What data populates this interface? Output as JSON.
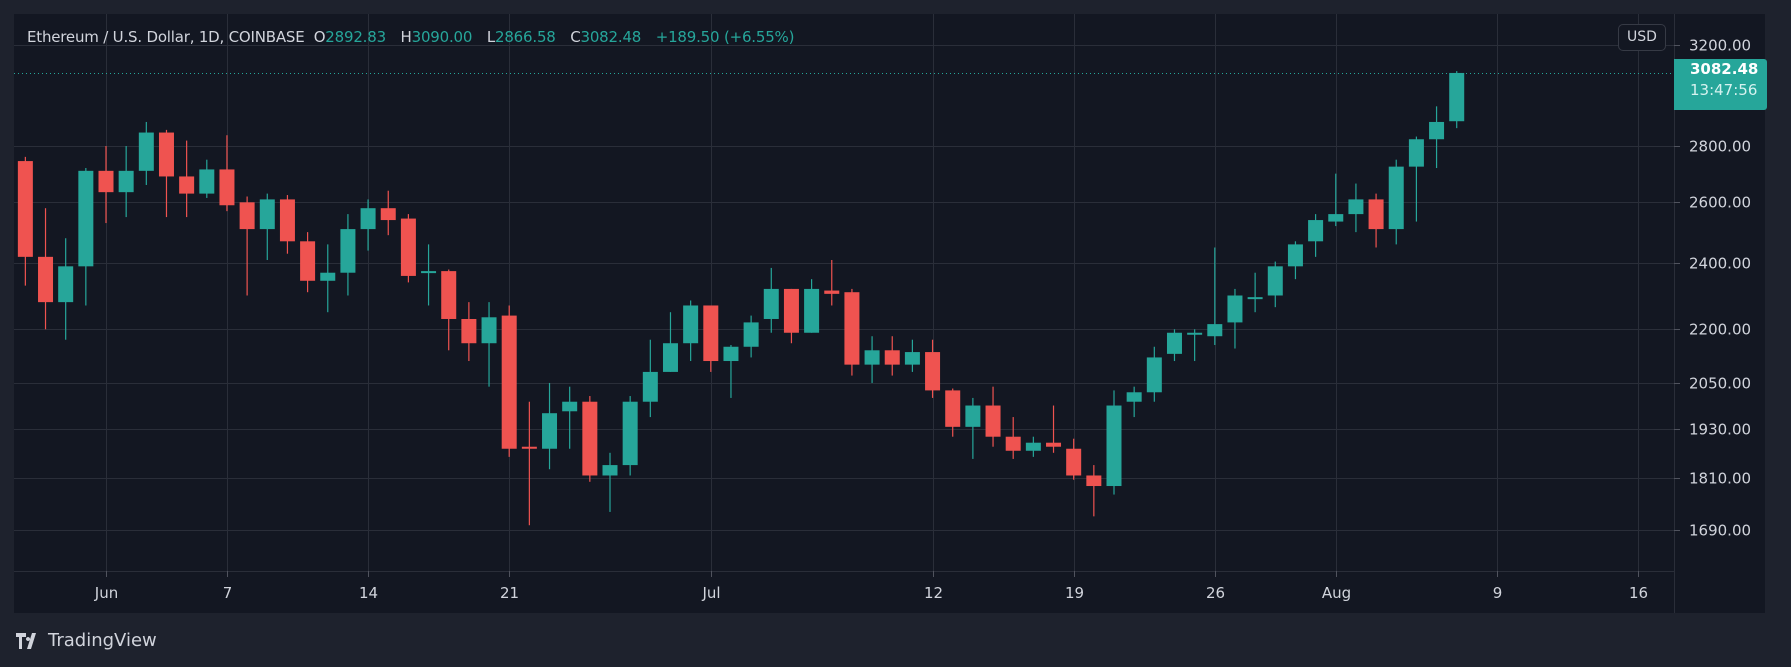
{
  "header": {
    "symbol": "Ethereum / U.S. Dollar, 1D, COINBASE",
    "o_label": "O",
    "o": "2892.83",
    "h_label": "H",
    "h": "3090.00",
    "l_label": "L",
    "l": "2866.58",
    "c_label": "C",
    "c": "3082.48",
    "change": "+189.50 (+6.55%)"
  },
  "currency_button": "USD",
  "last_price": {
    "price": "3082.48",
    "countdown": "13:47:56"
  },
  "branding": "TradingView",
  "colors": {
    "up": "#26a69a",
    "down": "#ef5350",
    "background": "#131722",
    "grid": "#2a2e39"
  },
  "chart_data": {
    "type": "candlestick",
    "title": "Ethereum / U.S. Dollar, 1D, COINBASE",
    "y_scale": "log",
    "ylim": [
      1620,
      3330
    ],
    "grid": true,
    "y_ticks": [
      "3200.00",
      "2800.00",
      "2600.00",
      "2400.00",
      "2200.00",
      "2050.00",
      "1930.00",
      "1810.00",
      "1690.00"
    ],
    "x_ticks": [
      {
        "label": "Jun",
        "date": "Jun 1"
      },
      {
        "label": "7",
        "date": "Jun 7"
      },
      {
        "label": "14",
        "date": "Jun 14"
      },
      {
        "label": "21",
        "date": "Jun 21"
      },
      {
        "label": "Jul",
        "date": "Jul 1"
      },
      {
        "label": "12",
        "date": "Jul 12"
      },
      {
        "label": "19",
        "date": "Jul 19"
      },
      {
        "label": "26",
        "date": "Jul 26"
      },
      {
        "label": "Aug",
        "date": "Aug 1"
      },
      {
        "label": "9",
        "date": "Aug 9"
      },
      {
        "label": "16",
        "date": "Aug 16"
      }
    ],
    "candles": [
      {
        "d": "May 28",
        "o": 2745,
        "h": 2760,
        "l": 2330,
        "c": 2420
      },
      {
        "d": "May 29",
        "o": 2420,
        "h": 2580,
        "l": 2200,
        "c": 2280
      },
      {
        "d": "May 30",
        "o": 2280,
        "h": 2480,
        "l": 2170,
        "c": 2390
      },
      {
        "d": "May 31",
        "o": 2390,
        "h": 2720,
        "l": 2270,
        "c": 2710
      },
      {
        "d": "Jun 1",
        "o": 2710,
        "h": 2800,
        "l": 2530,
        "c": 2635
      },
      {
        "d": "Jun 2",
        "o": 2635,
        "h": 2800,
        "l": 2550,
        "c": 2710
      },
      {
        "d": "Jun 3",
        "o": 2710,
        "h": 2890,
        "l": 2660,
        "c": 2850
      },
      {
        "d": "Jun 4",
        "o": 2850,
        "h": 2860,
        "l": 2550,
        "c": 2690
      },
      {
        "d": "Jun 5",
        "o": 2690,
        "h": 2820,
        "l": 2550,
        "c": 2630
      },
      {
        "d": "Jun 6",
        "o": 2630,
        "h": 2750,
        "l": 2615,
        "c": 2715
      },
      {
        "d": "Jun 7",
        "o": 2715,
        "h": 2840,
        "l": 2570,
        "c": 2590
      },
      {
        "d": "Jun 8",
        "o": 2600,
        "h": 2620,
        "l": 2300,
        "c": 2510
      },
      {
        "d": "Jun 9",
        "o": 2510,
        "h": 2630,
        "l": 2410,
        "c": 2610
      },
      {
        "d": "Jun 10",
        "o": 2610,
        "h": 2625,
        "l": 2430,
        "c": 2470
      },
      {
        "d": "Jun 11",
        "o": 2470,
        "h": 2500,
        "l": 2310,
        "c": 2345
      },
      {
        "d": "Jun 12",
        "o": 2345,
        "h": 2460,
        "l": 2250,
        "c": 2370
      },
      {
        "d": "Jun 13",
        "o": 2370,
        "h": 2560,
        "l": 2300,
        "c": 2510
      },
      {
        "d": "Jun 14",
        "o": 2510,
        "h": 2610,
        "l": 2440,
        "c": 2580
      },
      {
        "d": "Jun 15",
        "o": 2580,
        "h": 2640,
        "l": 2490,
        "c": 2540
      },
      {
        "d": "Jun 16",
        "o": 2545,
        "h": 2560,
        "l": 2340,
        "c": 2360
      },
      {
        "d": "Jun 17",
        "o": 2370,
        "h": 2460,
        "l": 2270,
        "c": 2375
      },
      {
        "d": "Jun 18",
        "o": 2375,
        "h": 2380,
        "l": 2140,
        "c": 2230
      },
      {
        "d": "Jun 19",
        "o": 2230,
        "h": 2280,
        "l": 2110,
        "c": 2160
      },
      {
        "d": "Jun 20",
        "o": 2160,
        "h": 2280,
        "l": 2040,
        "c": 2235
      },
      {
        "d": "Jun 21",
        "o": 2240,
        "h": 2270,
        "l": 1860,
        "c": 1880
      },
      {
        "d": "Jun 22",
        "o": 1885,
        "h": 2000,
        "l": 1700,
        "c": 1880
      },
      {
        "d": "Jun 23",
        "o": 1880,
        "h": 2050,
        "l": 1830,
        "c": 1970
      },
      {
        "d": "Jun 24",
        "o": 1975,
        "h": 2040,
        "l": 1880,
        "c": 2000
      },
      {
        "d": "Jun 25",
        "o": 2000,
        "h": 2015,
        "l": 1800,
        "c": 1815
      },
      {
        "d": "Jun 26",
        "o": 1815,
        "h": 1870,
        "l": 1730,
        "c": 1840
      },
      {
        "d": "Jun 27",
        "o": 1840,
        "h": 2015,
        "l": 1815,
        "c": 2000
      },
      {
        "d": "Jun 28",
        "o": 2000,
        "h": 2170,
        "l": 1960,
        "c": 2080
      },
      {
        "d": "Jun 29",
        "o": 2080,
        "h": 2250,
        "l": 2080,
        "c": 2160
      },
      {
        "d": "Jun 30",
        "o": 2160,
        "h": 2285,
        "l": 2110,
        "c": 2270
      },
      {
        "d": "Jul 1",
        "o": 2270,
        "h": 2270,
        "l": 2080,
        "c": 2110
      },
      {
        "d": "Jul 2",
        "o": 2110,
        "h": 2155,
        "l": 2010,
        "c": 2150
      },
      {
        "d": "Jul 3",
        "o": 2150,
        "h": 2240,
        "l": 2120,
        "c": 2220
      },
      {
        "d": "Jul 4",
        "o": 2230,
        "h": 2385,
        "l": 2190,
        "c": 2320
      },
      {
        "d": "Jul 5",
        "o": 2320,
        "h": 2320,
        "l": 2160,
        "c": 2190
      },
      {
        "d": "Jul 6",
        "o": 2190,
        "h": 2350,
        "l": 2190,
        "c": 2320
      },
      {
        "d": "Jul 7",
        "o": 2315,
        "h": 2410,
        "l": 2270,
        "c": 2305
      },
      {
        "d": "Jul 8",
        "o": 2310,
        "h": 2320,
        "l": 2070,
        "c": 2100
      },
      {
        "d": "Jul 9",
        "o": 2100,
        "h": 2180,
        "l": 2050,
        "c": 2140
      },
      {
        "d": "Jul 10",
        "o": 2140,
        "h": 2180,
        "l": 2070,
        "c": 2100
      },
      {
        "d": "Jul 11",
        "o": 2100,
        "h": 2170,
        "l": 2080,
        "c": 2135
      },
      {
        "d": "Jul 12",
        "o": 2135,
        "h": 2170,
        "l": 2010,
        "c": 2030
      },
      {
        "d": "Jul 13",
        "o": 2030,
        "h": 2035,
        "l": 1910,
        "c": 1935
      },
      {
        "d": "Jul 14",
        "o": 1935,
        "h": 2010,
        "l": 1855,
        "c": 1990
      },
      {
        "d": "Jul 15",
        "o": 1990,
        "h": 2040,
        "l": 1885,
        "c": 1910
      },
      {
        "d": "Jul 16",
        "o": 1910,
        "h": 1960,
        "l": 1855,
        "c": 1875
      },
      {
        "d": "Jul 17",
        "o": 1875,
        "h": 1910,
        "l": 1860,
        "c": 1895
      },
      {
        "d": "Jul 18",
        "o": 1895,
        "h": 1990,
        "l": 1870,
        "c": 1885
      },
      {
        "d": "Jul 19",
        "o": 1880,
        "h": 1905,
        "l": 1805,
        "c": 1815
      },
      {
        "d": "Jul 20",
        "o": 1815,
        "h": 1840,
        "l": 1720,
        "c": 1790
      },
      {
        "d": "Jul 21",
        "o": 1790,
        "h": 2030,
        "l": 1770,
        "c": 1990
      },
      {
        "d": "Jul 22",
        "o": 2000,
        "h": 2040,
        "l": 1960,
        "c": 2025
      },
      {
        "d": "Jul 23",
        "o": 2025,
        "h": 2150,
        "l": 2000,
        "c": 2120
      },
      {
        "d": "Jul 24",
        "o": 2130,
        "h": 2200,
        "l": 2110,
        "c": 2190
      },
      {
        "d": "Jul 25",
        "o": 2185,
        "h": 2200,
        "l": 2110,
        "c": 2190
      },
      {
        "d": "Jul 26",
        "o": 2180,
        "h": 2450,
        "l": 2155,
        "c": 2215
      },
      {
        "d": "Jul 27",
        "o": 2220,
        "h": 2320,
        "l": 2145,
        "c": 2300
      },
      {
        "d": "Jul 28",
        "o": 2290,
        "h": 2370,
        "l": 2250,
        "c": 2295
      },
      {
        "d": "Jul 29",
        "o": 2300,
        "h": 2405,
        "l": 2265,
        "c": 2390
      },
      {
        "d": "Jul 30",
        "o": 2390,
        "h": 2470,
        "l": 2350,
        "c": 2460
      },
      {
        "d": "Jul 31",
        "o": 2470,
        "h": 2560,
        "l": 2420,
        "c": 2540
      },
      {
        "d": "Aug 1",
        "o": 2535,
        "h": 2700,
        "l": 2520,
        "c": 2560
      },
      {
        "d": "Aug 2",
        "o": 2560,
        "h": 2665,
        "l": 2500,
        "c": 2610
      },
      {
        "d": "Aug 3",
        "o": 2610,
        "h": 2630,
        "l": 2450,
        "c": 2510
      },
      {
        "d": "Aug 4",
        "o": 2510,
        "h": 2750,
        "l": 2460,
        "c": 2725
      },
      {
        "d": "Aug 5",
        "o": 2725,
        "h": 2835,
        "l": 2535,
        "c": 2825
      },
      {
        "d": "Aug 6",
        "o": 2825,
        "h": 2950,
        "l": 2720,
        "c": 2890
      },
      {
        "d": "Aug 7",
        "o": 2892.83,
        "h": 3090.0,
        "l": 2866.58,
        "c": 3082.48
      }
    ]
  }
}
